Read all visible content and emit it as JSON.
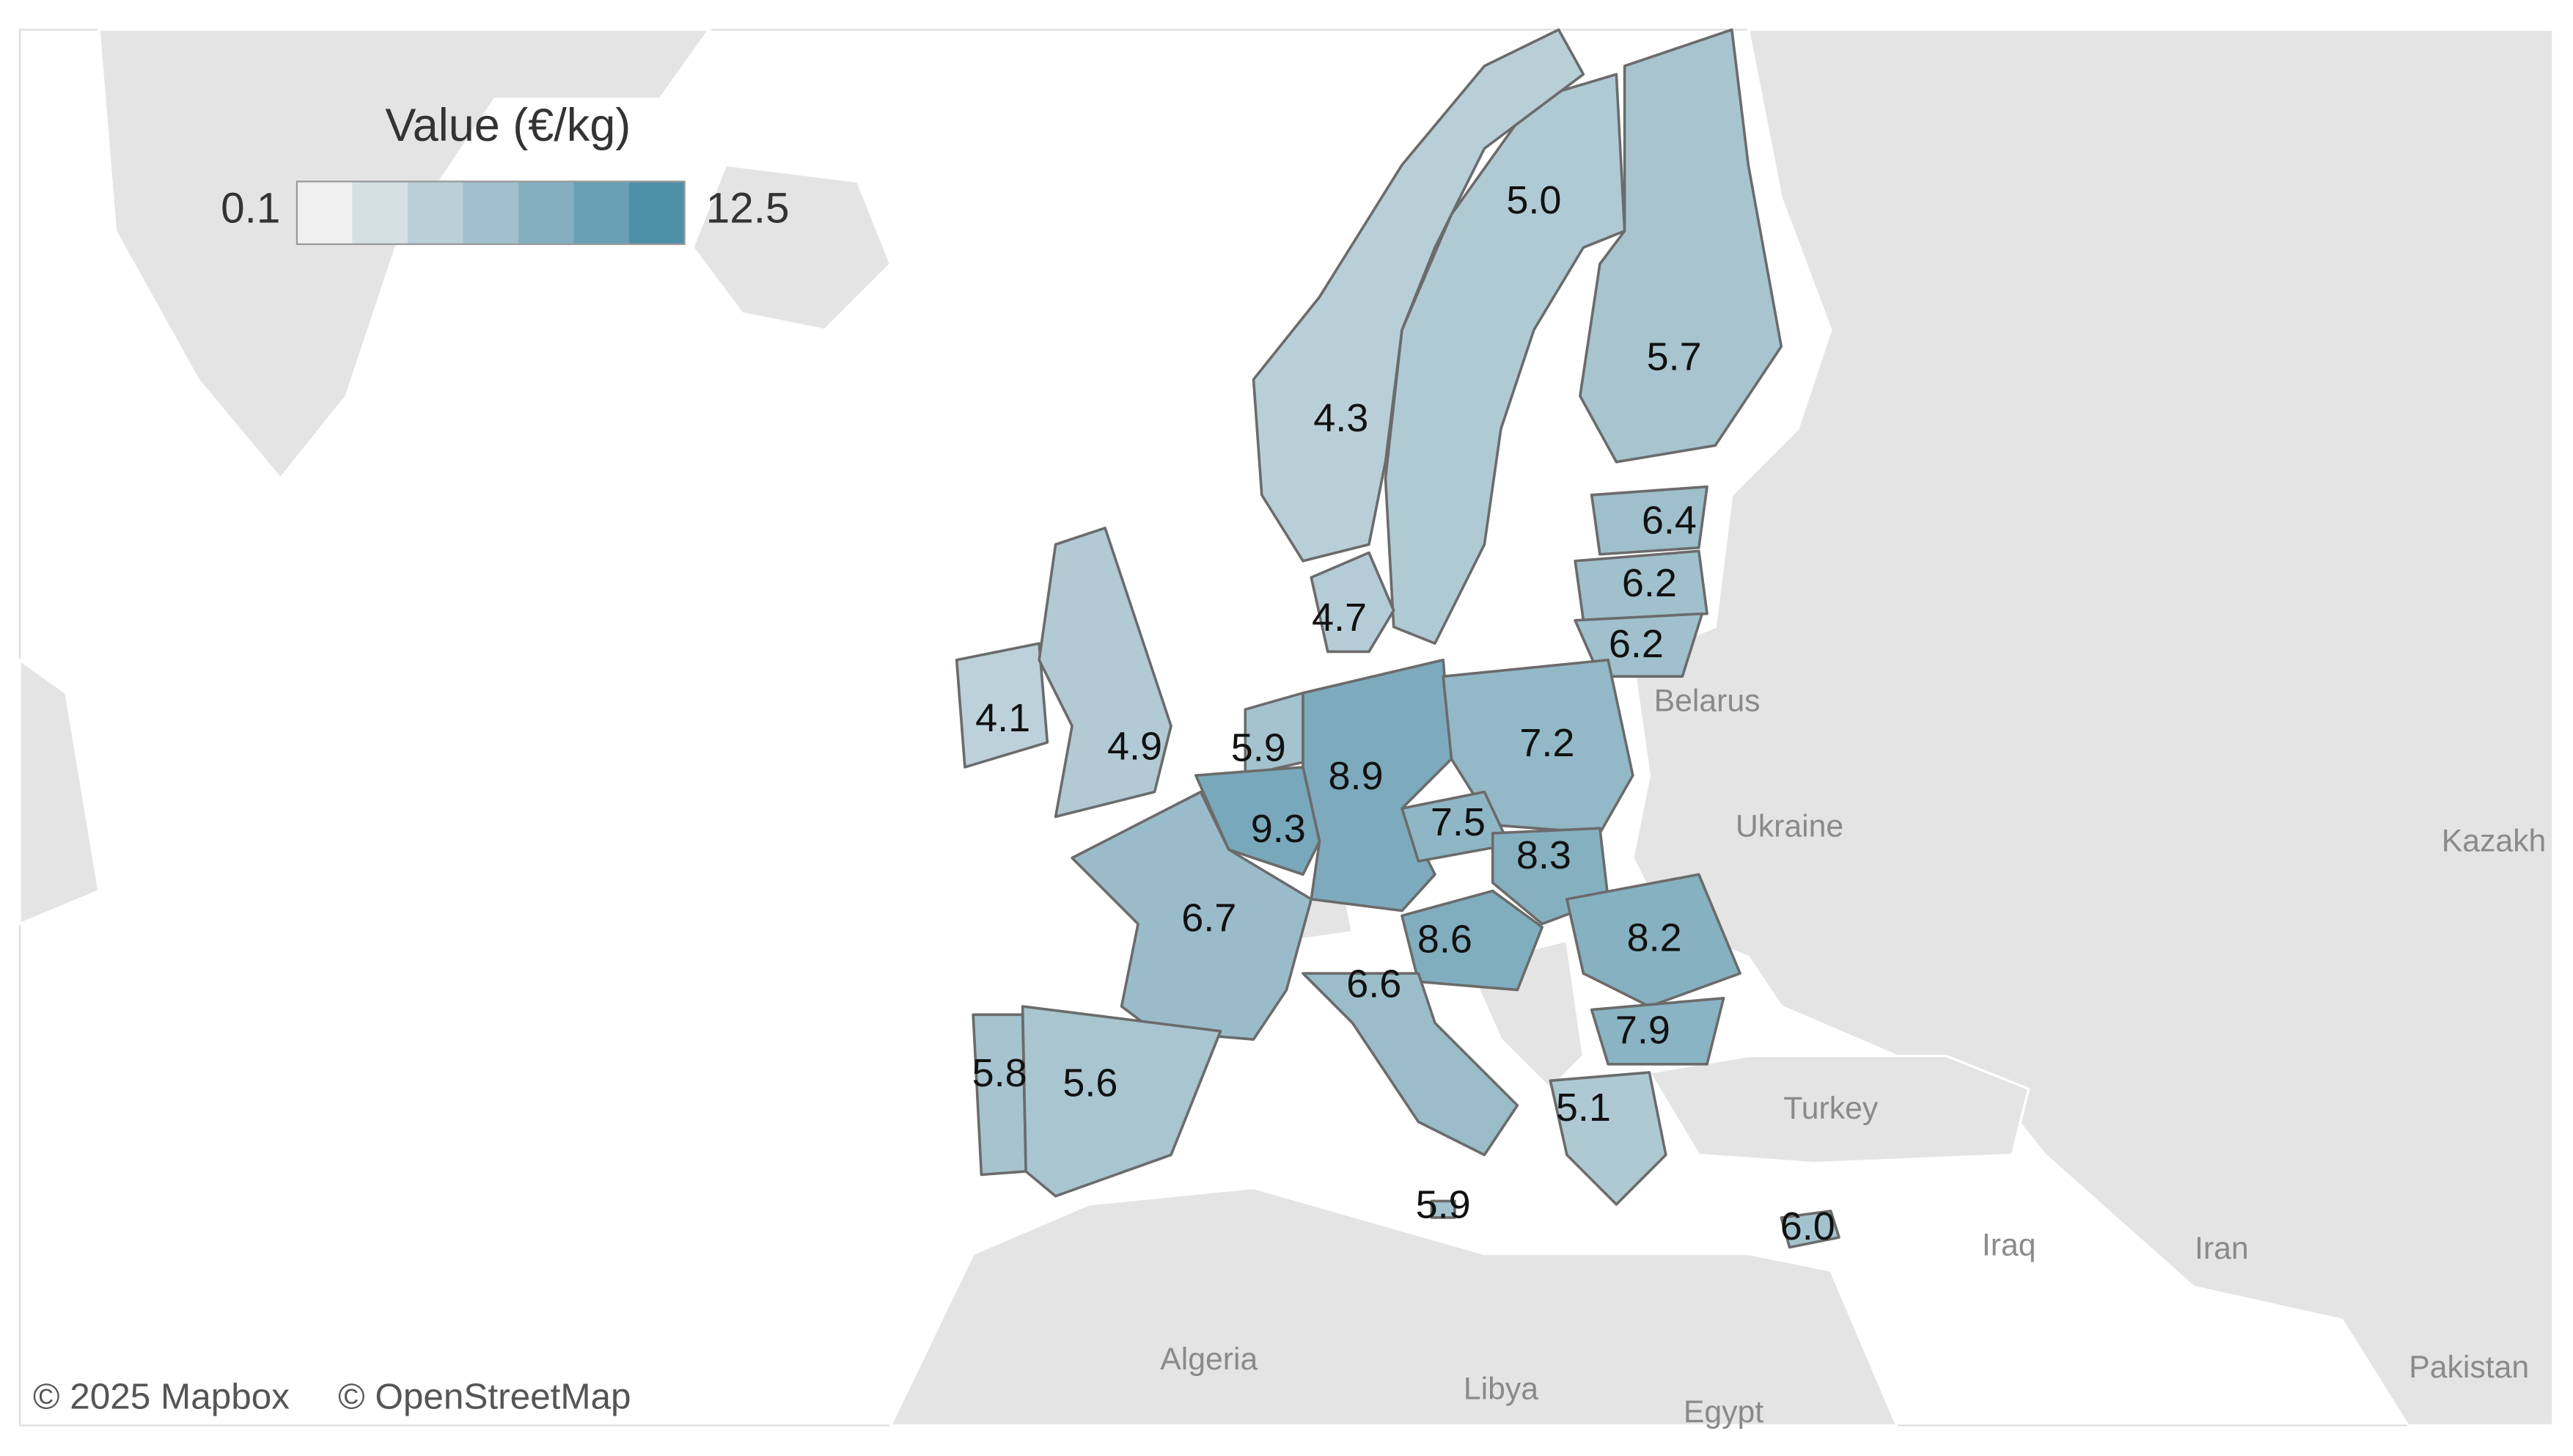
{
  "chart_data": {
    "type": "choropleth",
    "legend_title": "Value (€/kg)",
    "scale": {
      "min": 0.1,
      "max": 12.5
    },
    "colors": [
      "#f0f0f0",
      "#4e8fa8"
    ],
    "border_color": "#6b6b6b",
    "values": [
      5.0,
      5.7,
      4.3,
      6.4,
      6.2,
      6.2,
      4.7,
      4.1,
      4.9,
      5.9,
      8.9,
      9.3,
      7.2,
      7.5,
      8.3,
      6.7,
      8.6,
      6.6,
      8.2,
      7.9,
      5.1,
      5.8,
      5.6,
      5.9,
      6.0
    ],
    "value_labels": [
      "5.0",
      "5.7",
      "4.3",
      "6.4",
      "6.2",
      "6.2",
      "4.7",
      "4.1",
      "4.9",
      "5.9",
      "8.9",
      "9.3",
      "7.2",
      "7.5",
      "8.3",
      "6.7",
      "8.6",
      "6.6",
      "8.2",
      "7.9",
      "5.1",
      "5.8",
      "5.6",
      "5.9",
      "6.0"
    ]
  },
  "map_labels": [
    "Belarus",
    "Ukraine",
    "Kazakh",
    "Turkey",
    "Iraq",
    "Iran",
    "Algeria",
    "Libya",
    "Egypt",
    "Pakistan"
  ],
  "attribution": [
    "© 2025 Mapbox",
    "© OpenStreetMap"
  ]
}
